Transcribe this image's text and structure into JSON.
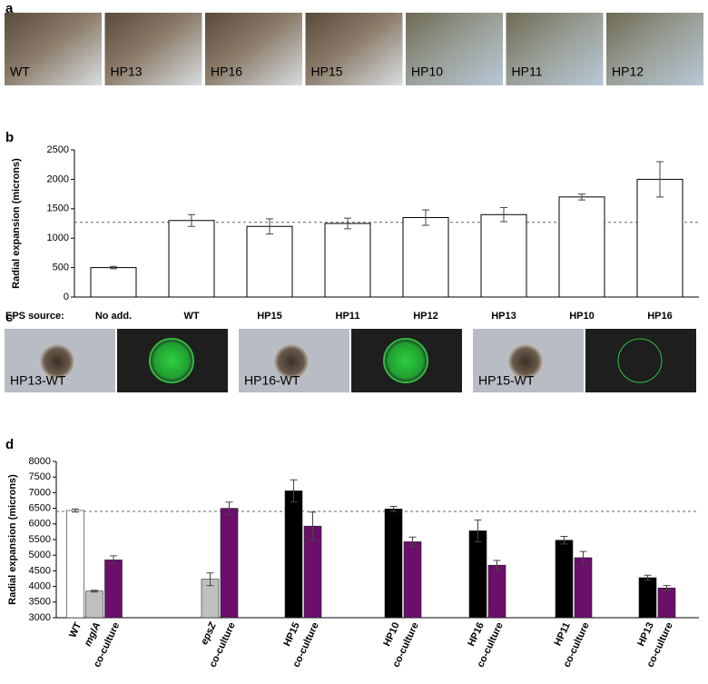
{
  "panel_labels": [
    "a",
    "b",
    "c",
    "d"
  ],
  "strain_images": [
    "WT",
    "HP13",
    "HP16",
    "HP15",
    "HP10",
    "HP11",
    "HP12"
  ],
  "coculture_images": [
    "HP13-WT",
    "HP16-WT",
    "HP15-WT"
  ],
  "chart_data": [
    {
      "type": "bar",
      "ylabel": "Radial expansion (microns)",
      "xlabel": "EPS source:",
      "categories": [
        "No add.",
        "WT",
        "HP15",
        "HP11",
        "HP12",
        "HP13",
        "HP10",
        "HP16"
      ],
      "values": [
        500,
        1300,
        1200,
        1250,
        1350,
        1400,
        1700,
        2000
      ],
      "errors": [
        20,
        100,
        130,
        90,
        130,
        120,
        50,
        300
      ],
      "color": "#ffffff",
      "edgecolor": "#000000",
      "ylim": [
        0,
        2500
      ],
      "yticks": [
        0,
        500,
        1000,
        1500,
        2000,
        2500
      ],
      "reference_line": 1270
    },
    {
      "type": "grouped_bar",
      "ylabel": "Radial expansion (microns)",
      "groups": [
        {
          "labels": [
            "WT",
            "mglA",
            "co-culture"
          ],
          "italic": [
            false,
            true,
            false
          ],
          "values": [
            6430,
            3850,
            4850
          ],
          "errors": [
            50,
            30,
            130
          ],
          "colors": [
            "#ffffff",
            "#c0c0c0",
            "#6b0f6b"
          ]
        },
        {
          "labels": [
            "epsZ",
            "co-culture"
          ],
          "italic": [
            true,
            false
          ],
          "values": [
            4230,
            6500
          ],
          "errors": [
            200,
            200
          ],
          "colors": [
            "#c0c0c0",
            "#6b0f6b"
          ]
        },
        {
          "labels": [
            "HP15",
            "co-culture"
          ],
          "italic": [
            false,
            false
          ],
          "values": [
            7060,
            5930
          ],
          "errors": [
            350,
            450
          ],
          "colors": [
            "#000000",
            "#6b0f6b"
          ]
        },
        {
          "labels": [
            "HP10",
            "co-culture"
          ],
          "italic": [
            false,
            false
          ],
          "values": [
            6480,
            5430
          ],
          "errors": [
            80,
            150
          ],
          "colors": [
            "#000000",
            "#6b0f6b"
          ]
        },
        {
          "labels": [
            "HP16",
            "co-culture"
          ],
          "italic": [
            false,
            false
          ],
          "values": [
            5780,
            4680
          ],
          "errors": [
            350,
            150
          ],
          "colors": [
            "#000000",
            "#6b0f6b"
          ]
        },
        {
          "labels": [
            "HP11",
            "co-culture"
          ],
          "italic": [
            false,
            false
          ],
          "values": [
            5480,
            4920
          ],
          "errors": [
            120,
            200
          ],
          "colors": [
            "#000000",
            "#6b0f6b"
          ]
        },
        {
          "labels": [
            "HP13",
            "co-culture"
          ],
          "italic": [
            false,
            false
          ],
          "values": [
            4280,
            3950
          ],
          "errors": [
            80,
            80
          ],
          "colors": [
            "#000000",
            "#6b0f6b"
          ]
        }
      ],
      "ylim": [
        3000,
        8000
      ],
      "yticks": [
        3000,
        3500,
        4000,
        4500,
        5000,
        5500,
        6000,
        6500,
        7000,
        7500,
        8000
      ],
      "reference_line": 6400
    }
  ]
}
